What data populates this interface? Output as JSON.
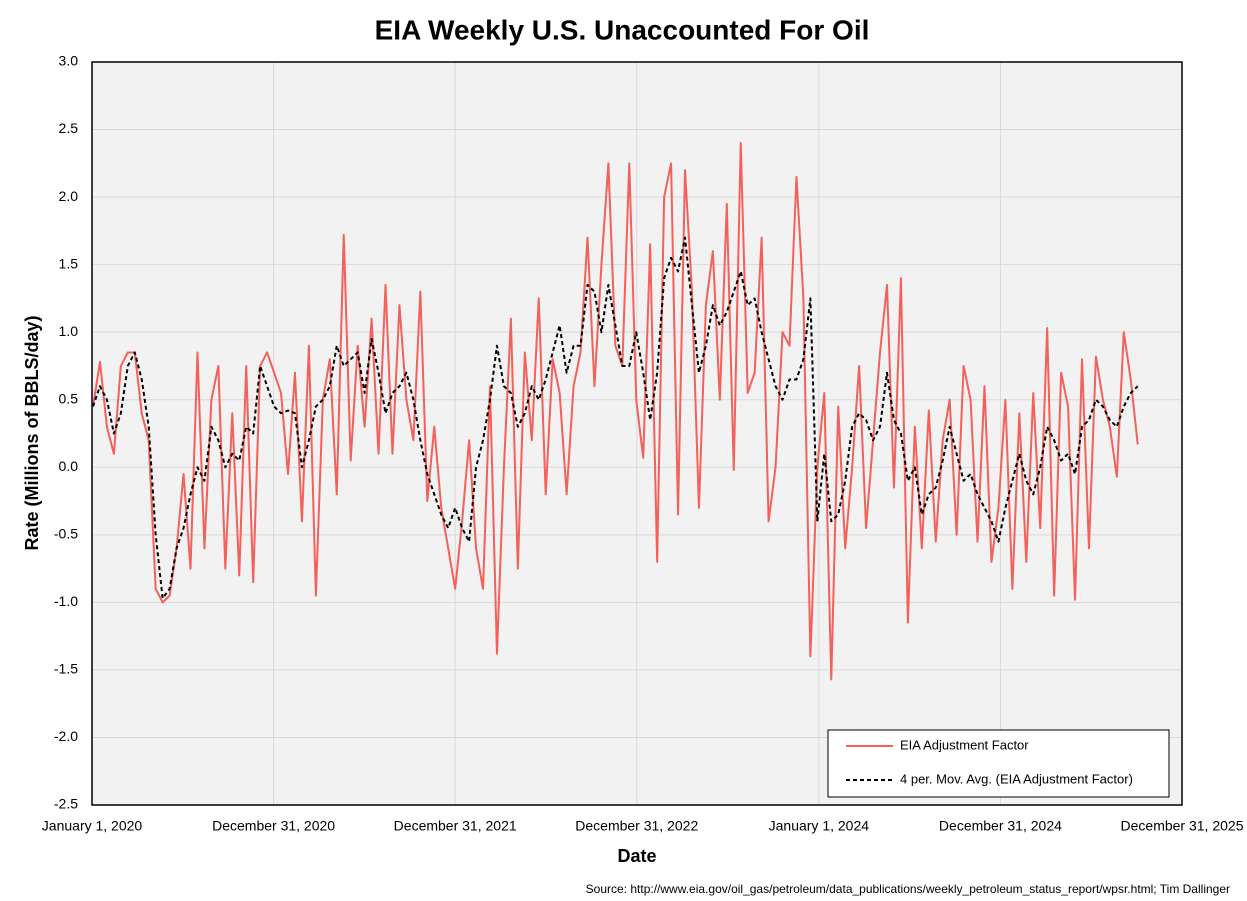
{
  "chart_data": {
    "type": "line",
    "title": "EIA Weekly U.S. Unaccounted For Oil",
    "x_label": "Date",
    "y_label": "Rate (Millions of BBLS/day)",
    "source": "Source: http://www.eia.gov/oil_gas/petroleum/data_publications/weekly_petroleum_status_report/wpsr.html; Tim Dallinger",
    "grid": true,
    "legend": "lower right",
    "xlim": [
      "2020-01-01",
      "2025-12-31"
    ],
    "xticks": [
      {
        "value": "2020-01-01",
        "label": "January 1, 2020"
      },
      {
        "value": "2020-12-31",
        "label": "December 31, 2020"
      },
      {
        "value": "2021-12-31",
        "label": "December 31, 2021"
      },
      {
        "value": "2022-12-31",
        "label": "December 31, 2022"
      },
      {
        "value": "2024-01-01",
        "label": "January 1, 2024"
      },
      {
        "value": "2024-12-31",
        "label": "December 31, 2024"
      },
      {
        "value": "2025-12-31",
        "label": "December 31, 2025"
      }
    ],
    "ylim": [
      -2.5,
      3.0
    ],
    "yticks": [
      {
        "value": -2.5,
        "label": "-2.5"
      },
      {
        "value": -2.0,
        "label": "-2.0"
      },
      {
        "value": -1.5,
        "label": "-1.5"
      },
      {
        "value": -1.0,
        "label": "-1.0"
      },
      {
        "value": -0.5,
        "label": "-0.5"
      },
      {
        "value": 0.0,
        "label": "0.0"
      },
      {
        "value": 0.5,
        "label": "0.5"
      },
      {
        "value": 1.0,
        "label": "1.0"
      },
      {
        "value": 1.5,
        "label": "1.5"
      },
      {
        "value": 2.0,
        "label": "2.0"
      },
      {
        "value": 2.5,
        "label": "2.5"
      },
      {
        "value": 3.0,
        "label": "3.0"
      }
    ],
    "x": [
      "2020-01-03",
      "2020-01-17",
      "2020-01-31",
      "2020-02-14",
      "2020-02-28",
      "2020-03-13",
      "2020-03-27",
      "2020-04-10",
      "2020-04-24",
      "2020-05-08",
      "2020-05-22",
      "2020-06-05",
      "2020-06-19",
      "2020-07-03",
      "2020-07-17",
      "2020-07-31",
      "2020-08-14",
      "2020-08-28",
      "2020-09-11",
      "2020-09-25",
      "2020-10-09",
      "2020-10-23",
      "2020-11-06",
      "2020-11-20",
      "2020-12-04",
      "2020-12-18",
      "2021-01-01",
      "2021-01-15",
      "2021-01-29",
      "2021-02-12",
      "2021-02-26",
      "2021-03-12",
      "2021-03-26",
      "2021-04-09",
      "2021-04-23",
      "2021-05-07",
      "2021-05-21",
      "2021-06-04",
      "2021-06-18",
      "2021-07-02",
      "2021-07-16",
      "2021-07-30",
      "2021-08-13",
      "2021-08-27",
      "2021-09-10",
      "2021-09-24",
      "2021-10-08",
      "2021-10-22",
      "2021-11-05",
      "2021-11-19",
      "2021-12-03",
      "2021-12-17",
      "2021-12-31",
      "2022-01-14",
      "2022-01-28",
      "2022-02-11",
      "2022-02-25",
      "2022-03-11",
      "2022-03-25",
      "2022-04-08",
      "2022-04-22",
      "2022-05-06",
      "2022-05-20",
      "2022-06-03",
      "2022-06-17",
      "2022-07-01",
      "2022-07-15",
      "2022-07-29",
      "2022-08-12",
      "2022-08-26",
      "2022-09-09",
      "2022-09-23",
      "2022-10-07",
      "2022-10-21",
      "2022-11-04",
      "2022-11-18",
      "2022-12-02",
      "2022-12-16",
      "2022-12-30",
      "2023-01-13",
      "2023-01-27",
      "2023-02-10",
      "2023-02-24",
      "2023-03-10",
      "2023-03-24",
      "2023-04-07",
      "2023-04-21",
      "2023-05-05",
      "2023-05-19",
      "2023-06-02",
      "2023-06-16",
      "2023-06-30",
      "2023-07-14",
      "2023-07-28",
      "2023-08-11",
      "2023-08-25",
      "2023-09-08",
      "2023-09-22",
      "2023-10-06",
      "2023-10-20",
      "2023-11-03",
      "2023-11-17",
      "2023-12-01",
      "2023-12-15",
      "2023-12-29",
      "2024-01-12",
      "2024-01-26",
      "2024-02-09",
      "2024-02-23",
      "2024-03-08",
      "2024-03-22",
      "2024-04-05",
      "2024-04-19",
      "2024-05-03",
      "2024-05-17",
      "2024-05-31",
      "2024-06-14",
      "2024-06-28",
      "2024-07-12",
      "2024-07-26",
      "2024-08-09",
      "2024-08-23",
      "2024-09-06",
      "2024-09-20",
      "2024-10-04",
      "2024-10-18",
      "2024-11-01",
      "2024-11-15",
      "2024-11-29",
      "2024-12-13",
      "2024-12-27",
      "2025-01-10",
      "2025-01-24",
      "2025-02-07",
      "2025-02-21",
      "2025-03-07",
      "2025-03-21",
      "2025-04-04",
      "2025-04-18",
      "2025-05-02",
      "2025-05-16",
      "2025-05-30",
      "2025-06-13",
      "2025-06-27",
      "2025-07-11",
      "2025-07-25",
      "2025-08-08",
      "2025-08-22",
      "2025-09-05",
      "2025-09-19",
      "2025-10-03"
    ],
    "series": [
      {
        "name": "EIA Adjustment Factor",
        "color": "#f4605a",
        "dashed": false,
        "values": [
          0.45,
          0.78,
          0.3,
          0.1,
          0.75,
          0.85,
          0.85,
          0.4,
          0.2,
          -0.9,
          -1.0,
          -0.95,
          -0.6,
          -0.05,
          -0.75,
          0.85,
          -0.6,
          0.5,
          0.75,
          -0.75,
          0.4,
          -0.8,
          0.75,
          -0.85,
          0.75,
          0.85,
          0.7,
          0.55,
          -0.05,
          0.7,
          -0.4,
          0.9,
          -0.95,
          0.5,
          0.8,
          -0.2,
          1.72,
          0.05,
          0.9,
          0.3,
          1.1,
          0.1,
          1.35,
          0.1,
          1.2,
          0.5,
          0.2,
          1.3,
          -0.25,
          0.3,
          -0.3,
          -0.6,
          -0.9,
          -0.4,
          0.2,
          -0.6,
          -0.9,
          0.6,
          -1.38,
          0.0,
          1.1,
          -0.75,
          0.85,
          0.2,
          1.25,
          -0.2,
          0.8,
          0.55,
          -0.2,
          0.6,
          0.85,
          1.7,
          0.6,
          1.5,
          2.25,
          0.9,
          0.75,
          2.25,
          0.5,
          0.07,
          1.65,
          -0.7,
          2.0,
          2.25,
          -0.35,
          2.2,
          1.3,
          -0.3,
          1.2,
          1.6,
          0.5,
          1.95,
          -0.02,
          2.4,
          0.55,
          0.7,
          1.7,
          -0.4,
          0.0,
          1.0,
          0.9,
          2.15,
          1.25,
          -1.4,
          0.0,
          0.55,
          -1.57,
          0.45,
          -0.6,
          0.0,
          0.75,
          -0.45,
          0.2,
          0.85,
          1.35,
          -0.15,
          1.4,
          -1.15,
          0.3,
          -0.6,
          0.42,
          -0.55,
          0.2,
          0.5,
          -0.5,
          0.75,
          0.5,
          -0.55,
          0.6,
          -0.7,
          -0.3,
          0.5,
          -0.9,
          0.4,
          -0.7,
          0.55,
          -0.45,
          1.03,
          -0.95,
          0.7,
          0.45,
          -0.98,
          0.8,
          -0.6,
          0.82,
          0.5,
          0.3,
          -0.07,
          1.0,
          0.65,
          0.17
        ]
      },
      {
        "name": "4 per. Mov. Avg. (EIA Adjustment Factor)",
        "color": "#000000",
        "dashed": true,
        "values": [
          0.45,
          0.6,
          0.5,
          0.25,
          0.4,
          0.75,
          0.85,
          0.65,
          0.3,
          -0.5,
          -0.97,
          -0.9,
          -0.6,
          -0.45,
          -0.2,
          0.0,
          -0.1,
          0.3,
          0.2,
          0.0,
          0.1,
          0.05,
          0.3,
          0.25,
          0.75,
          0.6,
          0.45,
          0.4,
          0.42,
          0.4,
          0.0,
          0.2,
          0.45,
          0.5,
          0.6,
          0.9,
          0.75,
          0.8,
          0.85,
          0.55,
          0.95,
          0.7,
          0.4,
          0.55,
          0.6,
          0.7,
          0.5,
          0.2,
          -0.05,
          -0.2,
          -0.35,
          -0.45,
          -0.3,
          -0.45,
          -0.55,
          0.0,
          0.2,
          0.5,
          0.9,
          0.6,
          0.55,
          0.3,
          0.4,
          0.6,
          0.5,
          0.65,
          0.85,
          1.05,
          0.7,
          0.9,
          0.9,
          1.35,
          1.3,
          1.0,
          1.35,
          1.05,
          0.75,
          0.75,
          1.0,
          0.7,
          0.35,
          0.7,
          1.4,
          1.55,
          1.45,
          1.7,
          1.2,
          0.7,
          0.9,
          1.2,
          1.05,
          1.15,
          1.3,
          1.45,
          1.2,
          1.25,
          1.0,
          0.8,
          0.6,
          0.5,
          0.65,
          0.65,
          0.8,
          1.25,
          -0.4,
          0.1,
          -0.4,
          -0.35,
          -0.1,
          0.3,
          0.4,
          0.35,
          0.2,
          0.3,
          0.7,
          0.35,
          0.25,
          -0.1,
          0.0,
          -0.35,
          -0.2,
          -0.15,
          0.05,
          0.3,
          0.1,
          -0.1,
          -0.05,
          -0.2,
          -0.3,
          -0.4,
          -0.55,
          -0.3,
          -0.1,
          0.1,
          -0.1,
          -0.2,
          0.0,
          0.3,
          0.2,
          0.05,
          0.1,
          -0.05,
          0.3,
          0.35,
          0.5,
          0.45,
          0.35,
          0.3,
          0.45,
          0.55,
          0.6
        ]
      }
    ]
  }
}
